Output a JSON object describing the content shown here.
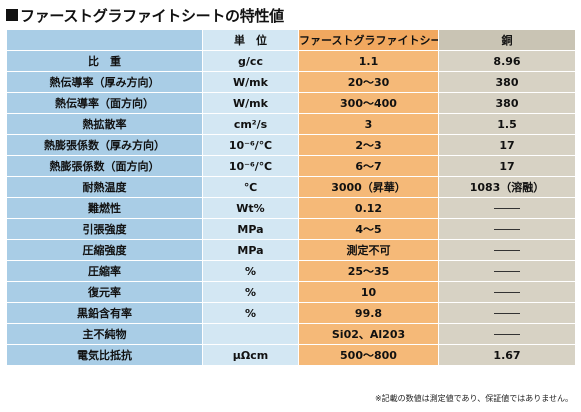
{
  "title": "ファーストグラファイトシートの特性値",
  "headers": {
    "label": "",
    "unit": "単　位",
    "value": "ファーストグラファイトシート",
    "copper": "銅"
  },
  "rows": [
    {
      "label": "比　重",
      "unit": "g/cc",
      "value": "1.1",
      "copper": "8.96"
    },
    {
      "label": "熱伝導率（厚み方向）",
      "unit": "W/mk",
      "value": "20〜30",
      "copper": "380"
    },
    {
      "label": "熱伝導率（面方向）",
      "unit": "W/mk",
      "value": "300〜400",
      "copper": "380"
    },
    {
      "label": "熱拡散率",
      "unit": "cm²/s",
      "value": "3",
      "copper": "1.5"
    },
    {
      "label": "熱膨張係数（厚み方向）",
      "unit": "10⁻⁶/℃",
      "value": "2〜3",
      "copper": "17"
    },
    {
      "label": "熱膨張係数（面方向）",
      "unit": "10⁻⁶/℃",
      "value": "6〜7",
      "copper": "17"
    },
    {
      "label": "耐熱温度",
      "unit": "℃",
      "value": "3000（昇華）",
      "copper": "1083（溶融）"
    },
    {
      "label": "難燃性",
      "unit": "Wt%",
      "value": "0.12",
      "copper": ""
    },
    {
      "label": "引張強度",
      "unit": "MPa",
      "value": "4〜5",
      "copper": ""
    },
    {
      "label": "圧縮強度",
      "unit": "MPa",
      "value": "測定不可",
      "copper": ""
    },
    {
      "label": "圧縮率",
      "unit": "%",
      "value": "25〜35",
      "copper": ""
    },
    {
      "label": "復元率",
      "unit": "%",
      "value": "10",
      "copper": ""
    },
    {
      "label": "黒鉛含有率",
      "unit": "%",
      "value": "99.8",
      "copper": ""
    },
    {
      "label": "主不純物",
      "unit": "",
      "value": "Si02、Al203",
      "copper": ""
    },
    {
      "label": "電気比抵抗",
      "unit": "μΩcm",
      "value": "500〜800",
      "copper": "1.67"
    }
  ],
  "note": "※記載の数値は測定値であり、保証値ではありません。",
  "colors": {
    "label_bg": "#a9cde6",
    "unit_bg": "#d3e7f3",
    "value_bg": "#f5b978",
    "copper_bg": "#d7d2c4"
  }
}
